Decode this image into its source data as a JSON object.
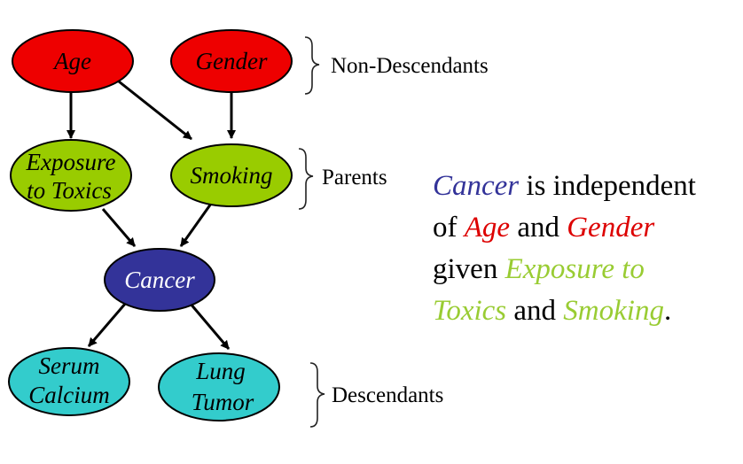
{
  "colors": {
    "non_descendant_fill": "#ee0000",
    "parent_fill": "#99cc00",
    "cancer_fill": "#333399",
    "descendant_fill": "#33cccc",
    "node_outline": "#000000",
    "cancer_text": "#ffffff",
    "node_text": "#000000",
    "hl_cancer": "#333399",
    "hl_non_descendant": "#dd0000",
    "hl_parent": "#99cc33"
  },
  "nodes": {
    "age": {
      "label": "Age"
    },
    "gender": {
      "label": "Gender"
    },
    "exposure": {
      "line1": "Exposure",
      "line2": "to Toxics"
    },
    "smoking": {
      "label": "Smoking"
    },
    "cancer": {
      "label": "Cancer"
    },
    "serum": {
      "line1": "Serum",
      "line2": "Calcium"
    },
    "lung": {
      "line1": "Lung",
      "line2": "Tumor"
    }
  },
  "edges": [
    {
      "from": "Age",
      "to": "Exposure to Toxics"
    },
    {
      "from": "Age",
      "to": "Smoking"
    },
    {
      "from": "Gender",
      "to": "Smoking"
    },
    {
      "from": "Exposure to Toxics",
      "to": "Cancer"
    },
    {
      "from": "Smoking",
      "to": "Cancer"
    },
    {
      "from": "Cancer",
      "to": "Serum Calcium"
    },
    {
      "from": "Cancer",
      "to": "Lung Tumor"
    }
  ],
  "groups": {
    "non_descendants": "Non-Descendants",
    "parents": "Parents",
    "descendants": "Descendants"
  },
  "statement": {
    "w1": "Cancer",
    "t1": " is independent",
    "t2": "of ",
    "w2": "Age",
    "t3": " and ",
    "w3": "Gender",
    "t4": "given ",
    "w4": "Exposure to",
    "w5": "Toxics",
    "t5": " and ",
    "w6": "Smoking",
    "t6": "."
  }
}
